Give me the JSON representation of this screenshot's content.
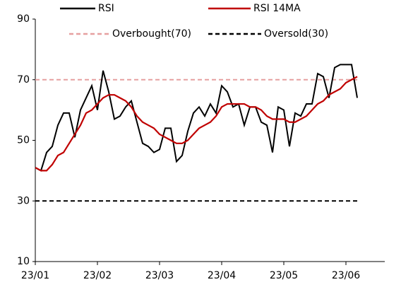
{
  "chart_data": {
    "type": "line",
    "categories": [
      "23/01",
      null,
      null,
      null,
      null,
      null,
      null,
      null,
      null,
      null,
      null,
      "23/02",
      null,
      null,
      null,
      null,
      null,
      null,
      null,
      null,
      null,
      null,
      "23/03",
      null,
      null,
      null,
      null,
      null,
      null,
      null,
      null,
      null,
      null,
      "23/04",
      null,
      null,
      null,
      null,
      null,
      null,
      null,
      null,
      null,
      null,
      "23/05",
      null,
      null,
      null,
      null,
      null,
      null,
      null,
      null,
      null,
      null,
      "23/06",
      null,
      null
    ],
    "series": [
      {
        "name": "RSI",
        "color": "#000000",
        "values": [
          41,
          40,
          46,
          48,
          55,
          59,
          59,
          51,
          60,
          64,
          68,
          60,
          73,
          66,
          57,
          58,
          61,
          63,
          56,
          49,
          48,
          46,
          47,
          54,
          54,
          43,
          45,
          53,
          59,
          61,
          58,
          62,
          59,
          68,
          66,
          61,
          62,
          55,
          61,
          61,
          56,
          55,
          46,
          61,
          60,
          48,
          59,
          58,
          62,
          62,
          72,
          71,
          64,
          74,
          75,
          75,
          75,
          64
        ]
      },
      {
        "name": "RSI 14MA",
        "color": "#c00000",
        "values": [
          41,
          40,
          40,
          42,
          45,
          46,
          49,
          52,
          55,
          59,
          60,
          62,
          64,
          65,
          65,
          64,
          63,
          61,
          58,
          56,
          55,
          54,
          52,
          51,
          50,
          49,
          49,
          50,
          52,
          54,
          55,
          56,
          58,
          61,
          62,
          62,
          62,
          62,
          61,
          61,
          60,
          58,
          57,
          57,
          57,
          56,
          56,
          57,
          58,
          60,
          62,
          63,
          65,
          66,
          67,
          69,
          70,
          71
        ]
      }
    ],
    "hlines": [
      {
        "name": "Overbought(70)",
        "value": 70,
        "color": "#e6a0a0",
        "dashed": true
      },
      {
        "name": "Oversold(30)",
        "value": 30,
        "color": "#000000",
        "dashed": true
      }
    ],
    "ylim": [
      10,
      90
    ],
    "yticks": [
      10,
      30,
      50,
      70,
      90
    ],
    "grid": false
  }
}
